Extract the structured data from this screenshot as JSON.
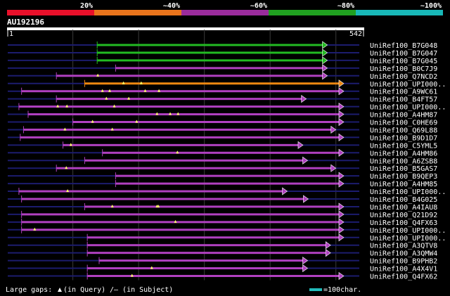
{
  "colors": {
    "background": "#000000",
    "text": "#ffffff",
    "grid": "#3a3a3a",
    "query_line": "#1c1c6e",
    "gap_marker": "#ffff66",
    "legend_bar": "#22bbbb",
    "band_20": "#e8102a",
    "band_40": "#e8741c",
    "band_60": "#9a2c9c",
    "band_80": "#20a020",
    "band_100": "#18b8b8",
    "hit_green": "#22bb22",
    "hit_orange": "#ee8811",
    "hit_purple": "#b040c0"
  },
  "identity_scale": {
    "bands": [
      {
        "label": "20%",
        "color_key": "band_20"
      },
      {
        "label": "~40%",
        "color_key": "band_40"
      },
      {
        "label": "~60%",
        "color_key": "band_60"
      },
      {
        "label": "~80%",
        "color_key": "band_80"
      },
      {
        "label": "~100%",
        "color_key": "band_100"
      }
    ]
  },
  "query": {
    "id": "AU192196",
    "start": 1,
    "end": 542
  },
  "hits": [
    {
      "name": "UniRef100_B7G048",
      "start": 137,
      "end": 487,
      "color": "green",
      "gaps": []
    },
    {
      "name": "UniRef100_B7G047",
      "start": 137,
      "end": 487,
      "color": "green",
      "gaps": []
    },
    {
      "name": "UniRef100_B7G045",
      "start": 137,
      "end": 487,
      "color": "green",
      "gaps": []
    },
    {
      "name": "UniRef100_B0C7J9",
      "start": 165,
      "end": 487,
      "color": "purple",
      "gaps": []
    },
    {
      "name": "UniRef100_Q7NCD2",
      "start": 75,
      "end": 487,
      "color": "purple",
      "gaps": [
        138
      ]
    },
    {
      "name": "UniRef100_UPI000..",
      "start": 118,
      "end": 512,
      "color": "orange",
      "gaps": [
        177,
        204
      ]
    },
    {
      "name": "UniRef100_A9WC61",
      "start": 22,
      "end": 512,
      "color": "purple",
      "gaps": [
        145,
        156,
        210,
        231
      ]
    },
    {
      "name": "UniRef100_B4FT57",
      "start": 75,
      "end": 455,
      "color": "purple",
      "gaps": [
        151,
        185
      ]
    },
    {
      "name": "UniRef100_UPI000..",
      "start": 18,
      "end": 512,
      "color": "purple",
      "gaps": [
        77,
        91,
        163
      ]
    },
    {
      "name": "UniRef100_A4HM87",
      "start": 32,
      "end": 512,
      "color": "purple",
      "gaps": [
        228,
        248,
        260
      ]
    },
    {
      "name": "UniRef100_C0HE69",
      "start": 100,
      "end": 512,
      "color": "purple",
      "gaps": [
        130,
        197
      ]
    },
    {
      "name": "UniRef100_Q69L88",
      "start": 25,
      "end": 500,
      "color": "purple",
      "gaps": [
        88,
        160
      ]
    },
    {
      "name": "UniRef100_B9D1D7",
      "start": 20,
      "end": 512,
      "color": "purple",
      "gaps": []
    },
    {
      "name": "UniRef100_C5YML5",
      "start": 85,
      "end": 450,
      "color": "purple",
      "gaps": [
        97
      ]
    },
    {
      "name": "UniRef100_A4HM86",
      "start": 145,
      "end": 512,
      "color": "purple",
      "gaps": [
        259
      ]
    },
    {
      "name": "UniRef100_A6ZSB8",
      "start": 118,
      "end": 457,
      "color": "purple",
      "gaps": []
    },
    {
      "name": "UniRef100_B5GAS7",
      "start": 75,
      "end": 500,
      "color": "purple",
      "gaps": [
        90
      ]
    },
    {
      "name": "UniRef100_B9QEP3",
      "start": 165,
      "end": 512,
      "color": "purple",
      "gaps": []
    },
    {
      "name": "UniRef100_A4HM85",
      "start": 165,
      "end": 512,
      "color": "purple",
      "gaps": []
    },
    {
      "name": "UniRef100_UPI000..",
      "start": 18,
      "end": 426,
      "color": "purple",
      "gaps": [
        92
      ]
    },
    {
      "name": "UniRef100_B4G025",
      "start": 22,
      "end": 458,
      "color": "purple",
      "gaps": []
    },
    {
      "name": "UniRef100_A4IAU8",
      "start": 118,
      "end": 512,
      "color": "purple",
      "gaps": [
        160,
        228,
        230
      ]
    },
    {
      "name": "UniRef100_Q21D92",
      "start": 22,
      "end": 512,
      "color": "purple",
      "gaps": []
    },
    {
      "name": "UniRef100_Q4FX63",
      "start": 22,
      "end": 512,
      "color": "purple",
      "gaps": [
        256
      ]
    },
    {
      "name": "UniRef100_UPI000..",
      "start": 22,
      "end": 512,
      "color": "purple",
      "gaps": [
        42
      ]
    },
    {
      "name": "UniRef100_UPI000..",
      "start": 122,
      "end": 512,
      "color": "purple",
      "gaps": []
    },
    {
      "name": "UniRef100_A3QTV8",
      "start": 122,
      "end": 492,
      "color": "purple",
      "gaps": []
    },
    {
      "name": "UniRef100_A3QMW4",
      "start": 122,
      "end": 492,
      "color": "purple",
      "gaps": []
    },
    {
      "name": "UniRef100_B9PHB2",
      "start": 140,
      "end": 457,
      "color": "purple",
      "gaps": []
    },
    {
      "name": "UniRef100_A4X4V1",
      "start": 122,
      "end": 457,
      "color": "purple",
      "gaps": [
        220
      ]
    },
    {
      "name": "UniRef100_Q4FX62",
      "start": 122,
      "end": 512,
      "color": "purple",
      "gaps": [
        190
      ]
    }
  ],
  "legend": {
    "prefix": "Large gaps:",
    "query_gap": "(in Query)",
    "subject_gap": "/– (in Subject)",
    "scale_label": "=100char."
  }
}
